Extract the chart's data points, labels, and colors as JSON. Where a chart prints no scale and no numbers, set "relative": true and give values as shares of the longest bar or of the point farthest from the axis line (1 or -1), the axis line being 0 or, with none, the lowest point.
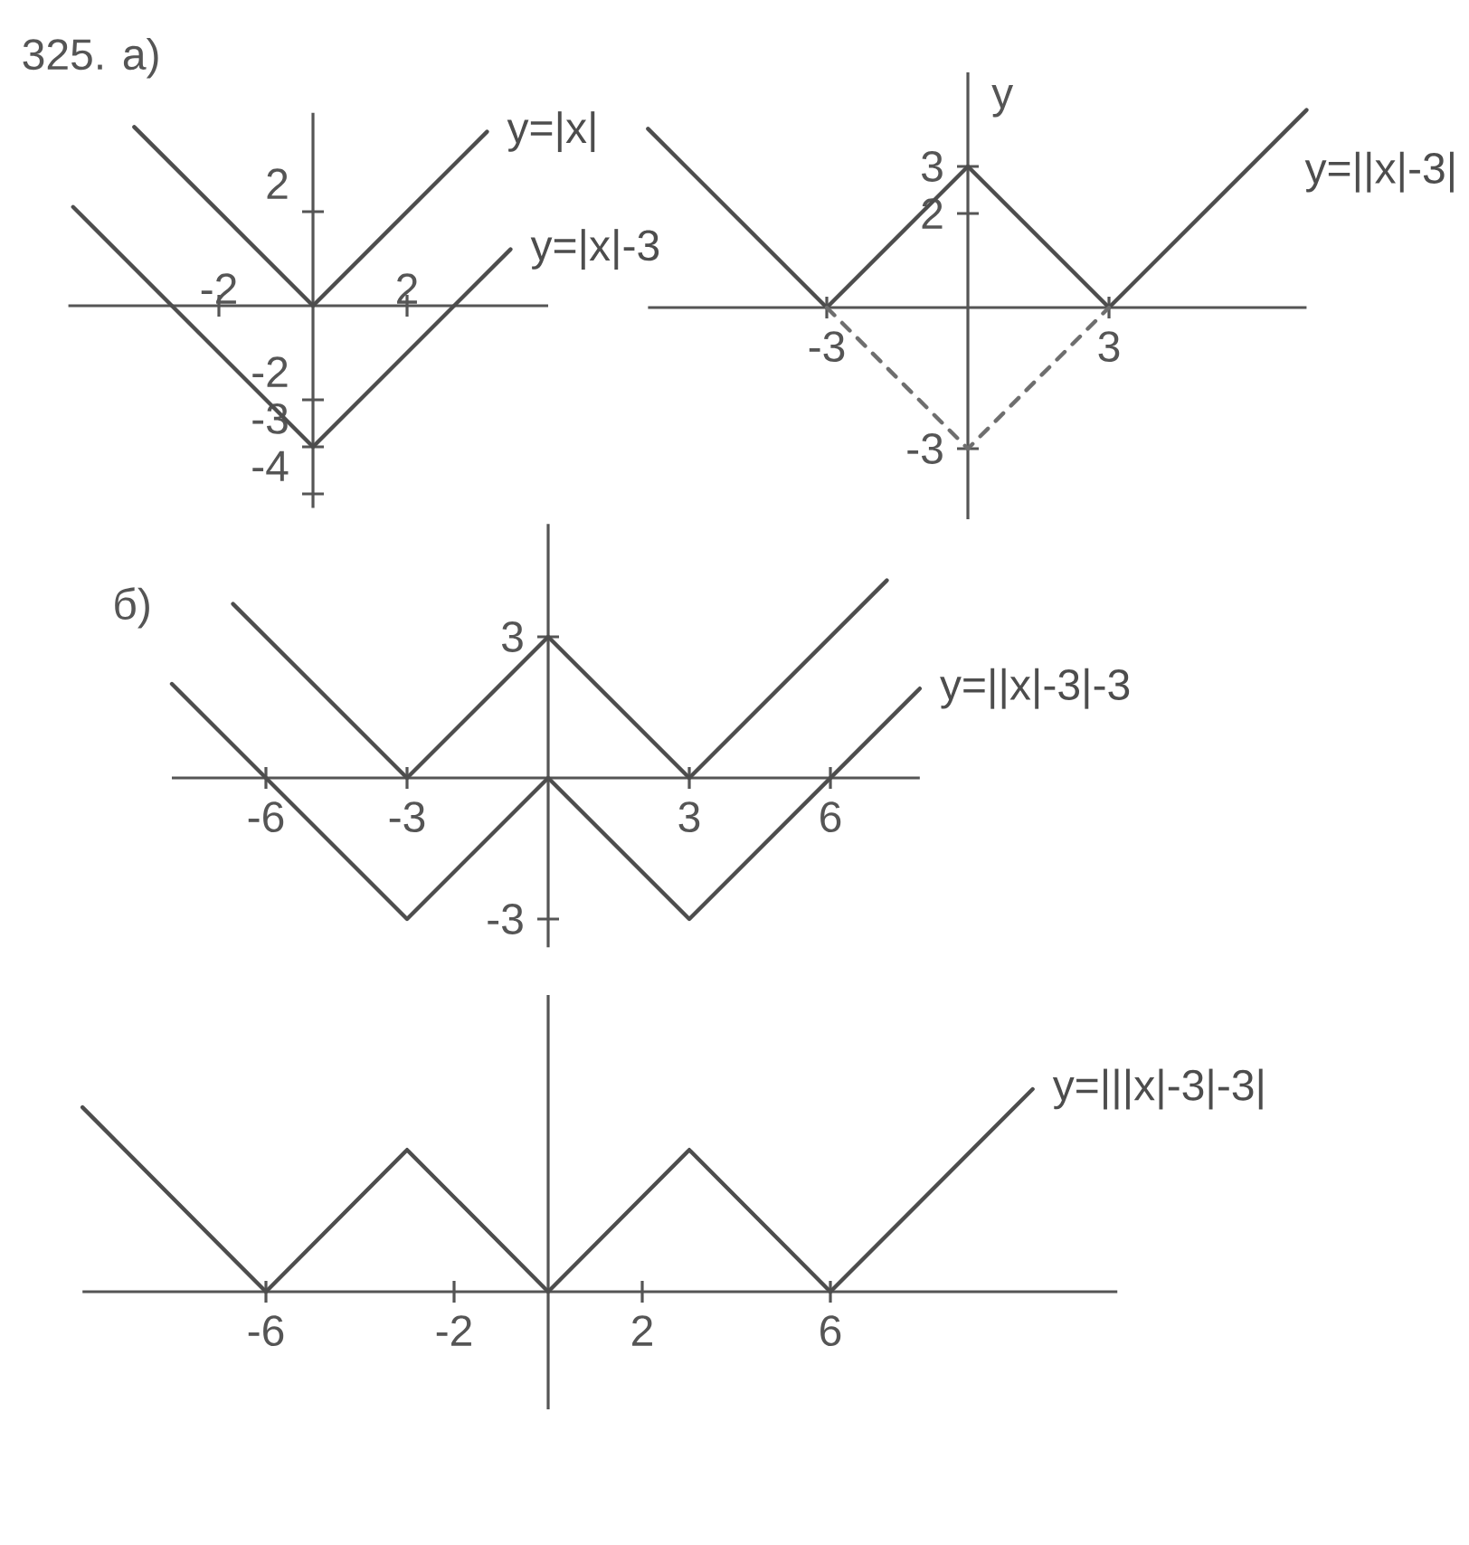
{
  "chart_data": [
    {
      "type": "line",
      "title": "325. а)",
      "series": [
        {
          "name": "y=|x|",
          "color": "#4d4d4d",
          "x": [
            -3.8,
            0,
            3.7
          ],
          "values": [
            3.8,
            0,
            3.7
          ]
        },
        {
          "name": "y=|x|-3",
          "color": "#4d4d4d",
          "x": [
            -5.1,
            0,
            4.2
          ],
          "values": [
            2.1,
            -3,
            1.2
          ]
        }
      ],
      "xlim": [
        -5.2,
        5
      ],
      "ylim": [
        -4.3,
        4.1
      ],
      "xticks": [
        -2,
        2
      ],
      "yticks": [
        -4,
        -3,
        -2,
        2
      ]
    },
    {
      "type": "line",
      "ylabel": "y",
      "series": [
        {
          "name": "y=||x|-3|",
          "color": "#4d4d4d",
          "x": [
            -6.8,
            -3,
            0,
            3,
            7.2
          ],
          "values": [
            3.8,
            0,
            3,
            0,
            4.2
          ]
        },
        {
          "color": "#6e6e6e",
          "line_style": "dashed",
          "x": [
            -3,
            0,
            3
          ],
          "values": [
            0,
            -3,
            0
          ]
        }
      ],
      "xlim": [
        -6.8,
        7.2
      ],
      "ylim": [
        -4.5,
        5
      ],
      "xticks": [
        -3,
        3
      ],
      "yticks": [
        -3,
        2,
        3
      ]
    },
    {
      "type": "line",
      "title": "б)",
      "series": [
        {
          "color": "#4d4d4d",
          "x": [
            -6.7,
            -3,
            0,
            3,
            7.2
          ],
          "values": [
            3.7,
            0,
            3,
            0,
            4.2
          ]
        },
        {
          "name": "y=||x|-3|-3",
          "color": "#4d4d4d",
          "x": [
            -8,
            -3,
            0,
            3,
            7.9
          ],
          "values": [
            2,
            -3,
            0,
            -3,
            1.9
          ]
        }
      ],
      "xlim": [
        -8,
        7.9
      ],
      "ylim": [
        -3.6,
        5.4
      ],
      "xticks": [
        -6,
        -3,
        3,
        6
      ],
      "yticks": [
        -3,
        3
      ]
    },
    {
      "type": "line",
      "relative": true,
      "series": [
        {
          "name": "y=|||x|-3|-3|",
          "color": "#4d4d4d",
          "x": [
            -9.9,
            -6,
            -3,
            0,
            3,
            6,
            10.3
          ],
          "values": [
            0.91,
            0,
            0.7,
            0,
            0.7,
            0,
            1
          ]
        }
      ],
      "xlim": [
        -9.9,
        12.1
      ],
      "xticks": [
        -6,
        -2,
        2,
        6
      ],
      "tick_labels": "x"
    }
  ]
}
